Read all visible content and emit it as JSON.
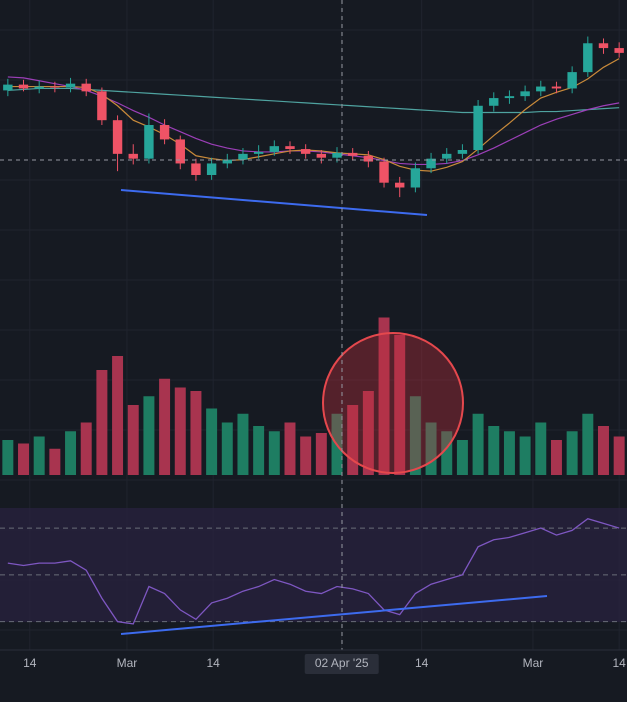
{
  "chart_data": [
    {
      "type": "candlestick",
      "xlim": [
        -0.5,
        39.5
      ],
      "ylim": [
        80,
        106
      ],
      "up_color": "#26a69a",
      "down_color": "#ef5366",
      "open": [
        96.6,
        97.2,
        96.8,
        97.0,
        96.9,
        97.3,
        96.5,
        93.5,
        90.0,
        89.5,
        93.0,
        91.5,
        89.0,
        87.8,
        89.0,
        89.4,
        90.0,
        90.2,
        90.8,
        90.5,
        90.0,
        89.6,
        90.1,
        89.8,
        89.2,
        87.0,
        86.5,
        88.5,
        89.5,
        90.0,
        90.4,
        95.0,
        95.8,
        96.0,
        96.5,
        97.0,
        96.8,
        98.5,
        101.5,
        101.0
      ],
      "high": [
        97.8,
        97.7,
        97.6,
        97.5,
        97.9,
        97.8,
        96.9,
        94.0,
        91.0,
        94.2,
        93.6,
        91.9,
        89.5,
        89.6,
        90.0,
        90.6,
        90.9,
        91.4,
        91.3,
        91.0,
        90.4,
        90.7,
        90.6,
        90.3,
        89.6,
        87.6,
        89.1,
        90.1,
        90.6,
        91.0,
        95.6,
        96.4,
        96.6,
        97.1,
        97.6,
        97.5,
        99.1,
        102.2,
        102.0,
        101.6
      ],
      "low": [
        96.0,
        96.5,
        96.3,
        96.4,
        96.4,
        96.0,
        93.0,
        88.2,
        88.9,
        89.0,
        91.0,
        88.4,
        87.2,
        87.3,
        88.5,
        88.9,
        89.5,
        89.8,
        90.0,
        89.5,
        89.0,
        89.1,
        89.3,
        88.6,
        86.5,
        85.5,
        86.0,
        88.0,
        89.0,
        89.5,
        90.0,
        94.4,
        95.2,
        95.5,
        96.0,
        96.3,
        96.3,
        98.0,
        100.4,
        100.0
      ],
      "close": [
        97.2,
        96.8,
        97.0,
        96.9,
        97.3,
        96.5,
        93.5,
        90.0,
        89.5,
        93.0,
        91.5,
        89.0,
        87.8,
        89.0,
        89.4,
        90.0,
        90.2,
        90.8,
        90.5,
        90.0,
        89.6,
        90.1,
        89.8,
        89.2,
        87.0,
        86.5,
        88.5,
        89.5,
        90.0,
        90.4,
        95.0,
        95.8,
        96.0,
        96.5,
        97.0,
        96.8,
        98.5,
        101.5,
        101.0,
        100.5
      ],
      "lines": [
        {
          "color": "#4fa3a0",
          "values": [
            96.6,
            96.7,
            96.8,
            96.8,
            96.8,
            96.7,
            96.6,
            96.5,
            96.4,
            96.3,
            96.2,
            96.1,
            96.0,
            95.9,
            95.8,
            95.7,
            95.6,
            95.5,
            95.4,
            95.3,
            95.2,
            95.1,
            95.0,
            94.9,
            94.8,
            94.7,
            94.6,
            94.5,
            94.4,
            94.3,
            94.3,
            94.3,
            94.3,
            94.3,
            94.4,
            94.4,
            94.5,
            94.6,
            94.7,
            94.8
          ]
        },
        {
          "color": "#9c3fb8",
          "values": [
            98.0,
            97.9,
            97.6,
            97.3,
            97.0,
            96.6,
            96.0,
            95.3,
            94.5,
            93.8,
            93.0,
            92.3,
            91.6,
            91.0,
            90.6,
            90.3,
            90.2,
            90.2,
            90.3,
            90.3,
            90.2,
            90.0,
            89.8,
            89.6,
            89.3,
            89.0,
            88.9,
            88.9,
            89.0,
            89.3,
            89.9,
            90.6,
            91.4,
            92.2,
            93.0,
            93.6,
            94.1,
            94.6,
            95.0,
            95.3
          ]
        },
        {
          "color": "#c98a3a",
          "values": [
            97.0,
            97.0,
            97.0,
            97.0,
            97.0,
            96.9,
            96.2,
            95.0,
            93.5,
            92.8,
            92.0,
            91.0,
            89.8,
            89.5,
            89.3,
            89.4,
            89.7,
            90.0,
            90.3,
            90.4,
            90.3,
            90.1,
            90.0,
            89.9,
            89.4,
            88.7,
            88.3,
            88.2,
            88.6,
            89.2,
            90.5,
            91.9,
            93.2,
            94.6,
            95.8,
            96.4,
            96.9,
            97.8,
            99.0,
            99.9
          ]
        }
      ]
    },
    {
      "type": "bar",
      "xlim": [
        -0.5,
        39.5
      ],
      "ylim": [
        0,
        100
      ],
      "up_color": "#1e7d62",
      "down_color": "#a8344f",
      "values": [
        20,
        18,
        22,
        15,
        25,
        30,
        60,
        68,
        40,
        45,
        55,
        50,
        48,
        38,
        30,
        35,
        28,
        25,
        30,
        22,
        24,
        35,
        40,
        48,
        90,
        80,
        45,
        30,
        25,
        20,
        35,
        28,
        25,
        22,
        30,
        20,
        25,
        35,
        28,
        22
      ]
    },
    {
      "type": "line",
      "xlim": [
        -0.5,
        39.5
      ],
      "ylim": [
        20,
        82
      ],
      "color": "#7e57c2",
      "levels": [
        30,
        50,
        70
      ],
      "values": [
        55,
        54,
        55,
        55,
        56,
        52,
        40,
        30,
        29,
        45,
        42,
        35,
        31,
        38,
        40,
        43,
        45,
        48,
        46,
        43,
        42,
        45,
        44,
        42,
        35,
        33,
        42,
        46,
        48,
        50,
        62,
        65,
        66,
        68,
        70,
        67,
        69,
        74,
        72,
        70
      ],
      "xticks": [
        {
          "value": 1.4,
          "label": "14"
        },
        {
          "value": 7.6,
          "label": "Mar"
        },
        {
          "value": 13.1,
          "label": "14"
        },
        {
          "value": 21.3,
          "label": "02 Apr '25"
        },
        {
          "value": 26.4,
          "label": "14"
        },
        {
          "value": 33.5,
          "label": "Mar"
        },
        {
          "value": 39,
          "label": "14"
        }
      ]
    }
  ]
}
